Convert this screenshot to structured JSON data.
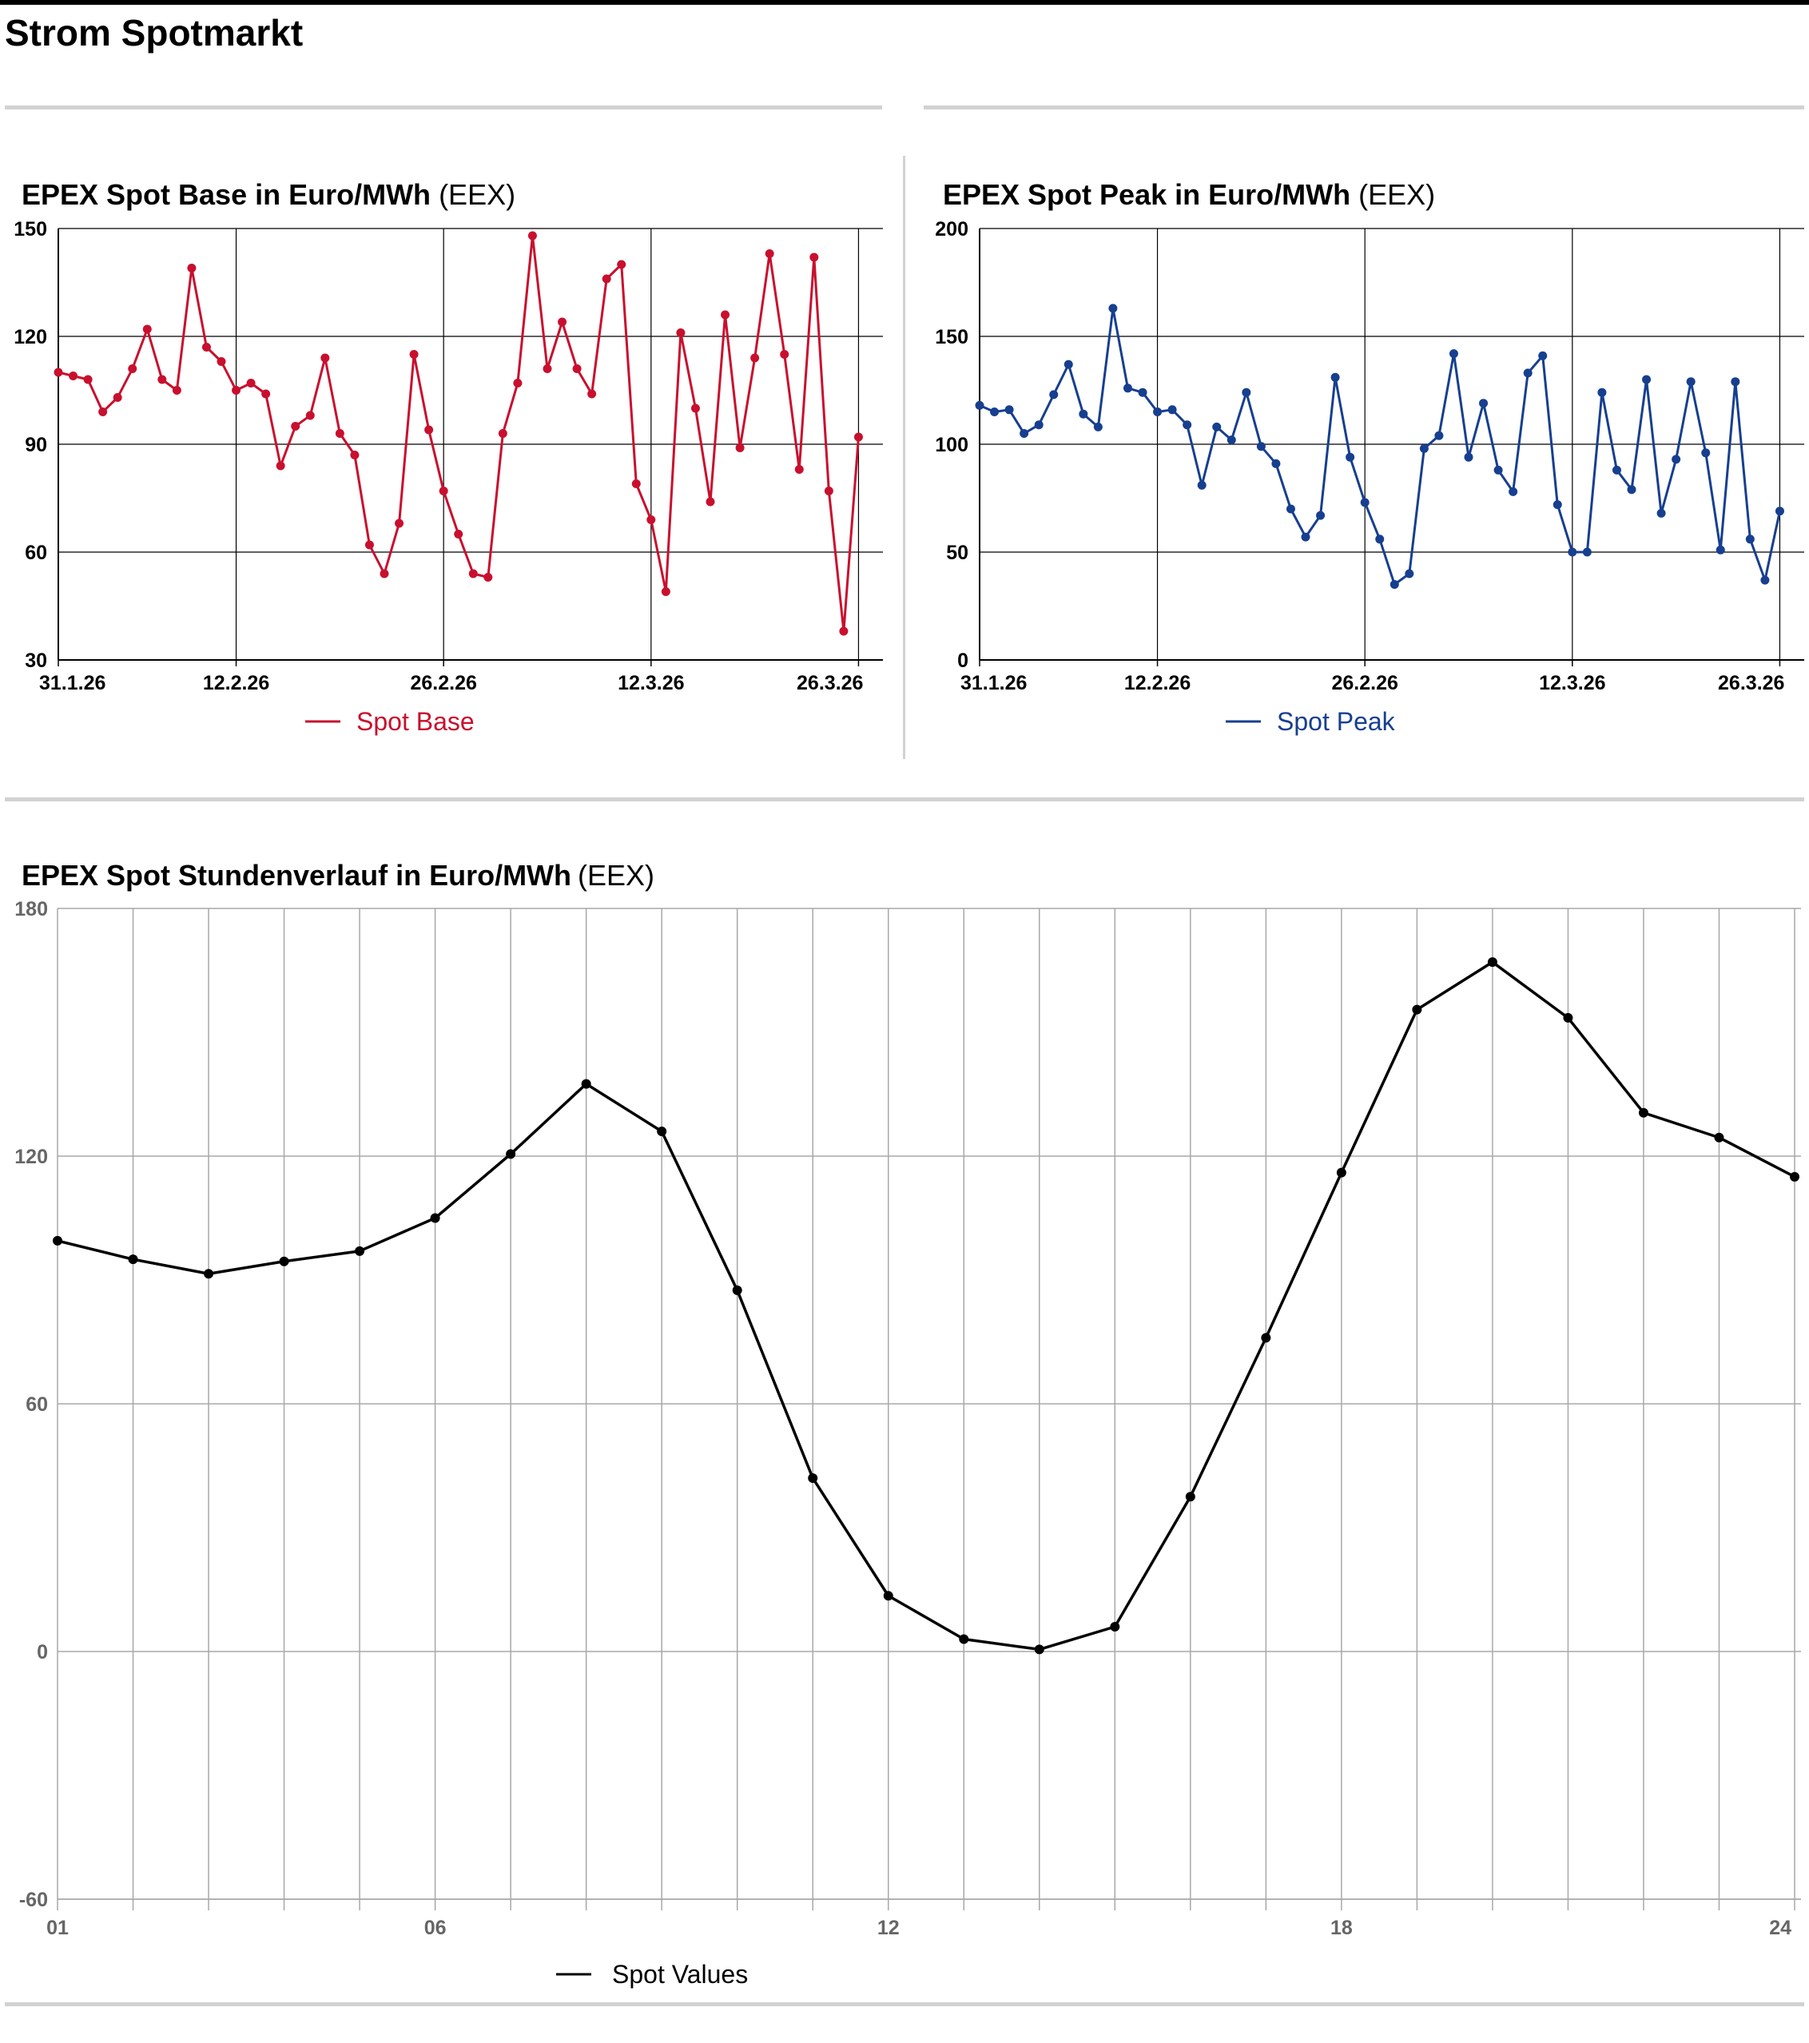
{
  "page": {
    "title": "Strom Spotmarkt"
  },
  "colors": {
    "base": "#c8102e",
    "peak": "#173f8f",
    "hourly": "#000000",
    "separator": "#d2d2d2"
  },
  "chart_data": [
    {
      "id": "base",
      "type": "line",
      "title": "EPEX Spot Base in Euro/MWh",
      "source": "(EEX)",
      "legend": "Spot Base",
      "xlabel": "",
      "ylabel": "",
      "x_range": [
        "31.1.26",
        "27.3.26"
      ],
      "ylim": [
        30,
        150
      ],
      "y_ticks": [
        30,
        60,
        90,
        120,
        150
      ],
      "x_ticks": [
        "31.1.26",
        "12.2.26",
        "26.2.26",
        "12.3.26",
        "26.3.26"
      ],
      "grid": true,
      "series": [
        {
          "name": "Spot Base",
          "values": [
            110,
            109,
            108,
            99,
            103,
            111,
            122,
            108,
            105,
            139,
            117,
            113,
            105,
            107,
            104,
            84,
            95,
            98,
            114,
            93,
            87,
            62,
            54,
            68,
            115,
            94,
            77,
            65,
            54,
            53,
            93,
            107,
            148,
            111,
            124,
            111,
            104,
            136,
            140,
            79,
            69,
            49,
            121,
            100,
            74,
            126,
            89,
            114,
            143,
            115,
            83,
            142,
            77,
            38,
            92
          ]
        }
      ]
    },
    {
      "id": "peak",
      "type": "line",
      "title": "EPEX Spot Peak in Euro/MWh",
      "source": "(EEX)",
      "legend": "Spot Peak",
      "xlabel": "",
      "ylabel": "",
      "x_range": [
        "31.1.26",
        "27.3.26"
      ],
      "ylim": [
        0,
        200
      ],
      "y_ticks": [
        0,
        50,
        100,
        150,
        200
      ],
      "x_ticks": [
        "31.1.26",
        "12.2.26",
        "26.2.26",
        "12.3.26",
        "26.3.26"
      ],
      "grid": true,
      "series": [
        {
          "name": "Spot Peak",
          "values": [
            118,
            115,
            116,
            105,
            109,
            123,
            137,
            114,
            108,
            163,
            126,
            124,
            115,
            116,
            109,
            81,
            108,
            102,
            124,
            99,
            91,
            70,
            57,
            67,
            131,
            94,
            73,
            56,
            35,
            40,
            98,
            104,
            142,
            94,
            119,
            88,
            78,
            133,
            141,
            72,
            50,
            50,
            124,
            88,
            79,
            130,
            68,
            93,
            129,
            96,
            51,
            129,
            56,
            37,
            69
          ]
        }
      ]
    },
    {
      "id": "hourly",
      "type": "line",
      "title": "EPEX Spot Stundenverlauf in Euro/MWh",
      "source": "(EEX)",
      "legend": "Spot Values",
      "xlabel": "",
      "ylabel": "",
      "ylim": [
        -60,
        180
      ],
      "y_ticks": [
        -60,
        0,
        60,
        120,
        180
      ],
      "x_ticks": [
        "01",
        "06",
        "12",
        "18",
        "24"
      ],
      "x_tick_hours": [
        1,
        6,
        12,
        18,
        24
      ],
      "grid": true,
      "series": [
        {
          "name": "Spot Values",
          "x": [
            1,
            2,
            3,
            4,
            5,
            6,
            7,
            8,
            9,
            10,
            11,
            12,
            13,
            14,
            15,
            16,
            17,
            18,
            19,
            20,
            21,
            22,
            23,
            24
          ],
          "values": [
            99.5,
            95,
            91.5,
            94.5,
            97,
            105,
            120.5,
            137.5,
            126,
            87.5,
            42,
            13.5,
            3,
            0.5,
            6,
            37.5,
            76,
            116,
            155.5,
            167,
            153.5,
            130.5,
            124.5,
            115
          ]
        }
      ]
    }
  ]
}
